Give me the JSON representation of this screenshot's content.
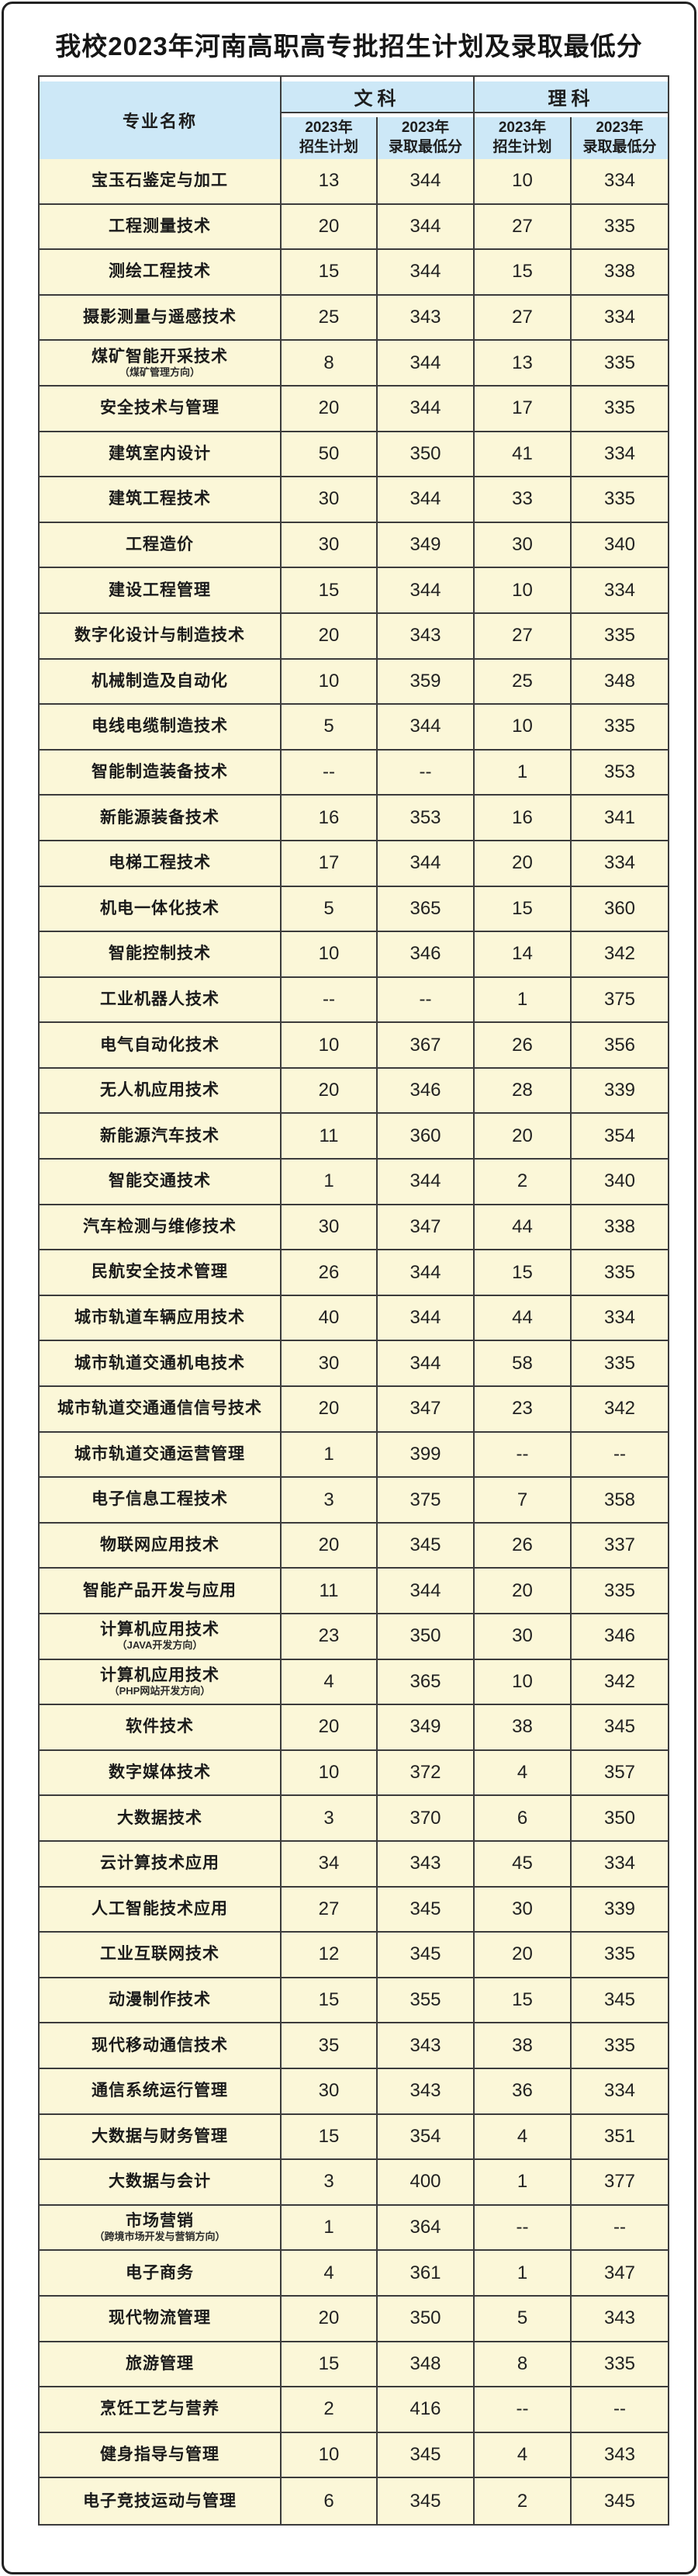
{
  "page": {
    "title": "我校2023年河南高职高专批招生计划及录取最低分"
  },
  "colors": {
    "header_bg": "#cde8f7",
    "row_bg": "#fbf7d8",
    "grid_line": "#3c3c3c",
    "page_border": "#222222",
    "text": "#1d1d1d"
  },
  "table": {
    "header": {
      "major_label": "专业名称",
      "arts_label": "文科",
      "science_label": "理科",
      "year_label": "2023年",
      "plan_label": "招生计划",
      "min_label": "录取最低分"
    },
    "rows": [
      {
        "major": "宝玉石鉴定与加工",
        "note": "",
        "arts_plan": "13",
        "arts_min": "344",
        "sci_plan": "10",
        "sci_min": "334"
      },
      {
        "major": "工程测量技术",
        "note": "",
        "arts_plan": "20",
        "arts_min": "344",
        "sci_plan": "27",
        "sci_min": "335"
      },
      {
        "major": "测绘工程技术",
        "note": "",
        "arts_plan": "15",
        "arts_min": "344",
        "sci_plan": "15",
        "sci_min": "338"
      },
      {
        "major": "摄影测量与遥感技术",
        "note": "",
        "arts_plan": "25",
        "arts_min": "343",
        "sci_plan": "27",
        "sci_min": "334"
      },
      {
        "major": "煤矿智能开采技术",
        "note": "（煤矿管理方向）",
        "arts_plan": "8",
        "arts_min": "344",
        "sci_plan": "13",
        "sci_min": "335"
      },
      {
        "major": "安全技术与管理",
        "note": "",
        "arts_plan": "20",
        "arts_min": "344",
        "sci_plan": "17",
        "sci_min": "335"
      },
      {
        "major": "建筑室内设计",
        "note": "",
        "arts_plan": "50",
        "arts_min": "350",
        "sci_plan": "41",
        "sci_min": "334"
      },
      {
        "major": "建筑工程技术",
        "note": "",
        "arts_plan": "30",
        "arts_min": "344",
        "sci_plan": "33",
        "sci_min": "335"
      },
      {
        "major": "工程造价",
        "note": "",
        "arts_plan": "30",
        "arts_min": "349",
        "sci_plan": "30",
        "sci_min": "340"
      },
      {
        "major": "建设工程管理",
        "note": "",
        "arts_plan": "15",
        "arts_min": "344",
        "sci_plan": "10",
        "sci_min": "334"
      },
      {
        "major": "数字化设计与制造技术",
        "note": "",
        "arts_plan": "20",
        "arts_min": "343",
        "sci_plan": "27",
        "sci_min": "335"
      },
      {
        "major": "机械制造及自动化",
        "note": "",
        "arts_plan": "10",
        "arts_min": "359",
        "sci_plan": "25",
        "sci_min": "348"
      },
      {
        "major": "电线电缆制造技术",
        "note": "",
        "arts_plan": "5",
        "arts_min": "344",
        "sci_plan": "10",
        "sci_min": "335"
      },
      {
        "major": "智能制造装备技术",
        "note": "",
        "arts_plan": "--",
        "arts_min": "--",
        "sci_plan": "1",
        "sci_min": "353"
      },
      {
        "major": "新能源装备技术",
        "note": "",
        "arts_plan": "16",
        "arts_min": "353",
        "sci_plan": "16",
        "sci_min": "341"
      },
      {
        "major": "电梯工程技术",
        "note": "",
        "arts_plan": "17",
        "arts_min": "344",
        "sci_plan": "20",
        "sci_min": "334"
      },
      {
        "major": "机电一体化技术",
        "note": "",
        "arts_plan": "5",
        "arts_min": "365",
        "sci_plan": "15",
        "sci_min": "360"
      },
      {
        "major": "智能控制技术",
        "note": "",
        "arts_plan": "10",
        "arts_min": "346",
        "sci_plan": "14",
        "sci_min": "342"
      },
      {
        "major": "工业机器人技术",
        "note": "",
        "arts_plan": "--",
        "arts_min": "--",
        "sci_plan": "1",
        "sci_min": "375"
      },
      {
        "major": "电气自动化技术",
        "note": "",
        "arts_plan": "10",
        "arts_min": "367",
        "sci_plan": "26",
        "sci_min": "356"
      },
      {
        "major": "无人机应用技术",
        "note": "",
        "arts_plan": "20",
        "arts_min": "346",
        "sci_plan": "28",
        "sci_min": "339"
      },
      {
        "major": "新能源汽车技术",
        "note": "",
        "arts_plan": "11",
        "arts_min": "360",
        "sci_plan": "20",
        "sci_min": "354"
      },
      {
        "major": "智能交通技术",
        "note": "",
        "arts_plan": "1",
        "arts_min": "344",
        "sci_plan": "2",
        "sci_min": "340"
      },
      {
        "major": "汽车检测与维修技术",
        "note": "",
        "arts_plan": "30",
        "arts_min": "347",
        "sci_plan": "44",
        "sci_min": "338"
      },
      {
        "major": "民航安全技术管理",
        "note": "",
        "arts_plan": "26",
        "arts_min": "344",
        "sci_plan": "15",
        "sci_min": "335"
      },
      {
        "major": "城市轨道车辆应用技术",
        "note": "",
        "arts_plan": "40",
        "arts_min": "344",
        "sci_plan": "44",
        "sci_min": "334"
      },
      {
        "major": "城市轨道交通机电技术",
        "note": "",
        "arts_plan": "30",
        "arts_min": "344",
        "sci_plan": "58",
        "sci_min": "335"
      },
      {
        "major": "城市轨道交通通信信号技术",
        "note": "",
        "arts_plan": "20",
        "arts_min": "347",
        "sci_plan": "23",
        "sci_min": "342"
      },
      {
        "major": "城市轨道交通运营管理",
        "note": "",
        "arts_plan": "1",
        "arts_min": "399",
        "sci_plan": "--",
        "sci_min": "--"
      },
      {
        "major": "电子信息工程技术",
        "note": "",
        "arts_plan": "3",
        "arts_min": "375",
        "sci_plan": "7",
        "sci_min": "358"
      },
      {
        "major": "物联网应用技术",
        "note": "",
        "arts_plan": "20",
        "arts_min": "345",
        "sci_plan": "26",
        "sci_min": "337"
      },
      {
        "major": "智能产品开发与应用",
        "note": "",
        "arts_plan": "11",
        "arts_min": "344",
        "sci_plan": "20",
        "sci_min": "335"
      },
      {
        "major": "计算机应用技术",
        "note": "（JAVA开发方向）",
        "arts_plan": "23",
        "arts_min": "350",
        "sci_plan": "30",
        "sci_min": "346"
      },
      {
        "major": "计算机应用技术",
        "note": "（PHP网站开发方向）",
        "arts_plan": "4",
        "arts_min": "365",
        "sci_plan": "10",
        "sci_min": "342"
      },
      {
        "major": "软件技术",
        "note": "",
        "arts_plan": "20",
        "arts_min": "349",
        "sci_plan": "38",
        "sci_min": "345"
      },
      {
        "major": "数字媒体技术",
        "note": "",
        "arts_plan": "10",
        "arts_min": "372",
        "sci_plan": "4",
        "sci_min": "357"
      },
      {
        "major": "大数据技术",
        "note": "",
        "arts_plan": "3",
        "arts_min": "370",
        "sci_plan": "6",
        "sci_min": "350"
      },
      {
        "major": "云计算技术应用",
        "note": "",
        "arts_plan": "34",
        "arts_min": "343",
        "sci_plan": "45",
        "sci_min": "334"
      },
      {
        "major": "人工智能技术应用",
        "note": "",
        "arts_plan": "27",
        "arts_min": "345",
        "sci_plan": "30",
        "sci_min": "339"
      },
      {
        "major": "工业互联网技术",
        "note": "",
        "arts_plan": "12",
        "arts_min": "345",
        "sci_plan": "20",
        "sci_min": "335"
      },
      {
        "major": "动漫制作技术",
        "note": "",
        "arts_plan": "15",
        "arts_min": "355",
        "sci_plan": "15",
        "sci_min": "345"
      },
      {
        "major": "现代移动通信技术",
        "note": "",
        "arts_plan": "35",
        "arts_min": "343",
        "sci_plan": "38",
        "sci_min": "335"
      },
      {
        "major": "通信系统运行管理",
        "note": "",
        "arts_plan": "30",
        "arts_min": "343",
        "sci_plan": "36",
        "sci_min": "334"
      },
      {
        "major": "大数据与财务管理",
        "note": "",
        "arts_plan": "15",
        "arts_min": "354",
        "sci_plan": "4",
        "sci_min": "351"
      },
      {
        "major": "大数据与会计",
        "note": "",
        "arts_plan": "3",
        "arts_min": "400",
        "sci_plan": "1",
        "sci_min": "377"
      },
      {
        "major": "市场营销",
        "note": "（跨境市场开发与营销方向）",
        "arts_plan": "1",
        "arts_min": "364",
        "sci_plan": "--",
        "sci_min": "--"
      },
      {
        "major": "电子商务",
        "note": "",
        "arts_plan": "4",
        "arts_min": "361",
        "sci_plan": "1",
        "sci_min": "347"
      },
      {
        "major": "现代物流管理",
        "note": "",
        "arts_plan": "20",
        "arts_min": "350",
        "sci_plan": "5",
        "sci_min": "343"
      },
      {
        "major": "旅游管理",
        "note": "",
        "arts_plan": "15",
        "arts_min": "348",
        "sci_plan": "8",
        "sci_min": "335"
      },
      {
        "major": "烹饪工艺与营养",
        "note": "",
        "arts_plan": "2",
        "arts_min": "416",
        "sci_plan": "--",
        "sci_min": "--"
      },
      {
        "major": "健身指导与管理",
        "note": "",
        "arts_plan": "10",
        "arts_min": "345",
        "sci_plan": "4",
        "sci_min": "343"
      },
      {
        "major": "电子竞技运动与管理",
        "note": "",
        "arts_plan": "6",
        "arts_min": "345",
        "sci_plan": "2",
        "sci_min": "345"
      }
    ]
  }
}
